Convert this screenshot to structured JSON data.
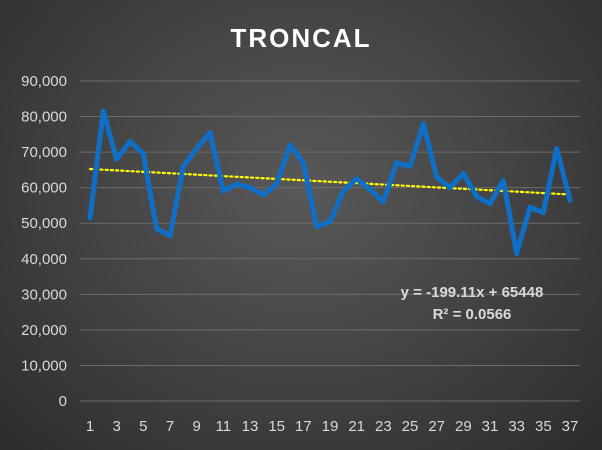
{
  "chart_data": {
    "type": "line",
    "title": "TRONCAL",
    "xlabel": "",
    "ylabel": "",
    "x": [
      1,
      2,
      3,
      4,
      5,
      6,
      7,
      8,
      9,
      10,
      11,
      12,
      13,
      14,
      15,
      16,
      17,
      18,
      19,
      20,
      21,
      22,
      23,
      24,
      25,
      26,
      27,
      28,
      29,
      30,
      31,
      32,
      33,
      34,
      35,
      36,
      37
    ],
    "x_tick_labels": [
      "1",
      "3",
      "5",
      "7",
      "9",
      "11",
      "13",
      "15",
      "17",
      "19",
      "21",
      "23",
      "25",
      "27",
      "29",
      "31",
      "33",
      "35",
      "37"
    ],
    "ylim": [
      0,
      90000
    ],
    "y_tick_labels": [
      "0",
      "10,000",
      "20,000",
      "30,000",
      "40,000",
      "50,000",
      "60,000",
      "70,000",
      "80,000",
      "90,000"
    ],
    "grid": true,
    "series": [
      {
        "values": [
          51500,
          81500,
          68000,
          73000,
          69500,
          48500,
          46500,
          66000,
          71000,
          75500,
          59000,
          61000,
          60000,
          58000,
          61000,
          72000,
          67000,
          49000,
          50500,
          59000,
          62500,
          59500,
          56000,
          67000,
          66000,
          78000,
          63000,
          60000,
          64000,
          57500,
          55500,
          62000,
          41500,
          54500,
          53000,
          71000,
          56500
        ],
        "color": "#0f6fc6"
      }
    ],
    "trendline": {
      "type": "linear",
      "slope": -199.11,
      "intercept": 65448,
      "color": "#ffff00",
      "equation_label": "y = -199.11x + 65448",
      "r2_label": "R² = 0.0566"
    }
  }
}
